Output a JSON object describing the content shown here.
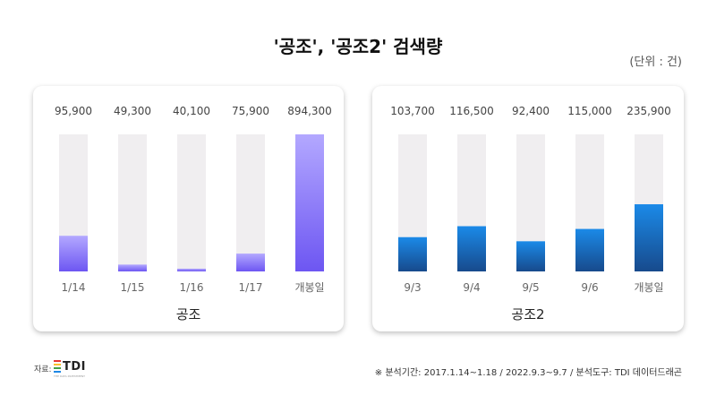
{
  "title": "'공조', '공조2' 검색량",
  "unit": "(단위 : 건)",
  "colors": {
    "track": "#f0eef0",
    "left_top": "#b3a8ff",
    "left_bottom": "#6d56f2",
    "right_top": "#1b8ae8",
    "right_bottom": "#174a8c"
  },
  "chart_data": [
    {
      "type": "bar",
      "title": "공조",
      "categories": [
        "1/14",
        "1/15",
        "1/16",
        "1/17",
        "개봉일"
      ],
      "values": [
        95900,
        49300,
        40100,
        75900,
        894300
      ],
      "value_labels": [
        "95,900",
        "49,300",
        "40,100",
        "75,900",
        "894,300"
      ],
      "fill_fraction": [
        0.26,
        0.05,
        0.02,
        0.13,
        1.0
      ],
      "ylim": [
        0,
        894300
      ],
      "legend": "none",
      "grid": false
    },
    {
      "type": "bar",
      "title": "공조2",
      "categories": [
        "9/3",
        "9/4",
        "9/5",
        "9/6",
        "개봉일"
      ],
      "values": [
        103700,
        116500,
        92400,
        115000,
        235900
      ],
      "value_labels": [
        "103,700",
        "116,500",
        "92,400",
        "115,000",
        "235,900"
      ],
      "fill_fraction": [
        0.25,
        0.33,
        0.22,
        0.31,
        0.49
      ],
      "ylim": [
        0,
        480000
      ],
      "legend": "none",
      "grid": false
    }
  ],
  "source": {
    "label": "자료:",
    "logo_text": "TDI",
    "logo_sub": "THE DATA INVESTMENT",
    "logo_colors": [
      "#e53935",
      "#fbc02d",
      "#43a047",
      "#1e88e5"
    ]
  },
  "footnote": "※ 분석기간:  2017.1.14~1.18 / 2022.9.3~9.7  / 분석도구: TDI 데이터드래곤"
}
